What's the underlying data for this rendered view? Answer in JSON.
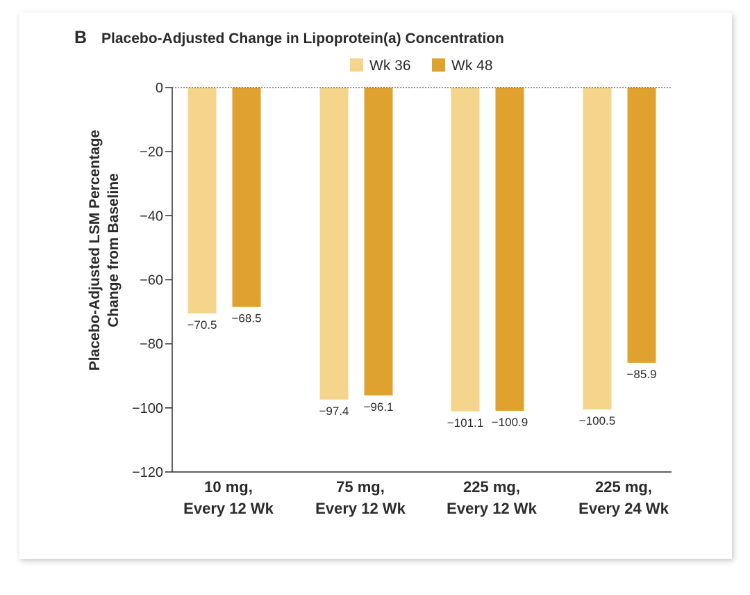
{
  "panel_letter": "B",
  "chart_data": {
    "type": "bar",
    "title": "Placebo-Adjusted Change in Lipoprotein(a) Concentration",
    "ylabel_lines": [
      "Placebo-Adjusted LSM Percentage",
      "Change from Baseline"
    ],
    "categories": [
      [
        "10 mg,",
        "Every 12 Wk"
      ],
      [
        "75 mg,",
        "Every 12 Wk"
      ],
      [
        "225 mg,",
        "Every 12 Wk"
      ],
      [
        "225 mg,",
        "Every 24 Wk"
      ]
    ],
    "series": [
      {
        "name": "Wk 36",
        "color": "#f5d58b",
        "values": [
          -70.5,
          -97.4,
          -101.1,
          -100.5
        ],
        "labels": [
          "−70.5",
          "−97.4",
          "−101.1",
          "−100.5"
        ]
      },
      {
        "name": "Wk 48",
        "color": "#e0a22f",
        "values": [
          -68.5,
          -96.1,
          -100.9,
          -85.9
        ],
        "labels": [
          "−68.5",
          "−96.1",
          "−100.9",
          "−85.9"
        ]
      }
    ],
    "yticks": [
      0,
      -20,
      -40,
      -60,
      -80,
      -100,
      -120
    ],
    "ytick_labels": [
      "0",
      "−20",
      "−40",
      "−60",
      "−80",
      "−100",
      "−120"
    ],
    "ylim": [
      -120,
      0
    ],
    "legend_position": "top-center",
    "zero_line": "dashed"
  }
}
